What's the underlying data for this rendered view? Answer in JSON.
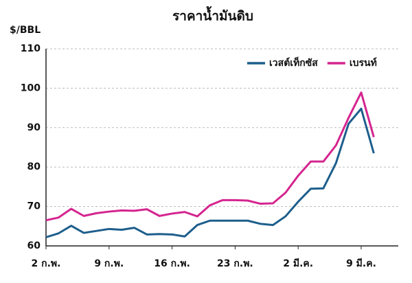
{
  "chart_data": {
    "type": "line",
    "title": "ราคาน้ำมันดิบ",
    "y_label": "$/BBL",
    "categories": [
      "2 ก.พ.",
      null,
      null,
      null,
      null,
      "9 ก.พ.",
      null,
      null,
      null,
      null,
      "16 ก.พ.",
      null,
      null,
      null,
      null,
      "23 ก.พ.",
      null,
      null,
      null,
      null,
      "2 มี.ค.",
      null,
      null,
      null,
      null,
      "9 มี.ค.",
      null
    ],
    "series": [
      {
        "name": "เวสต์เท็กซัส",
        "color": "#1d5e8c",
        "values": [
          62.2,
          63.2,
          65.1,
          63.3,
          63.8,
          64.3,
          64.1,
          64.6,
          62.9,
          63.0,
          62.9,
          62.4,
          65.3,
          66.4,
          66.4,
          66.4,
          66.4,
          65.6,
          65.3,
          67.5,
          71.2,
          74.5,
          74.6,
          81.0,
          91.0,
          94.8,
          83.5
        ]
      },
      {
        "name": "เบรนท์",
        "color": "#d4258f",
        "values": [
          66.5,
          67.2,
          69.4,
          67.6,
          68.3,
          68.7,
          69.0,
          68.9,
          69.3,
          67.6,
          68.2,
          68.6,
          67.5,
          70.3,
          71.6,
          71.6,
          71.5,
          70.7,
          70.8,
          73.5,
          77.8,
          81.4,
          81.4,
          85.5,
          92.5,
          98.9,
          87.6
        ]
      }
    ],
    "ylim": [
      60,
      110
    ],
    "yticks": [
      60,
      70,
      80,
      90,
      100,
      110
    ],
    "grid": true,
    "legend": "top-right"
  }
}
